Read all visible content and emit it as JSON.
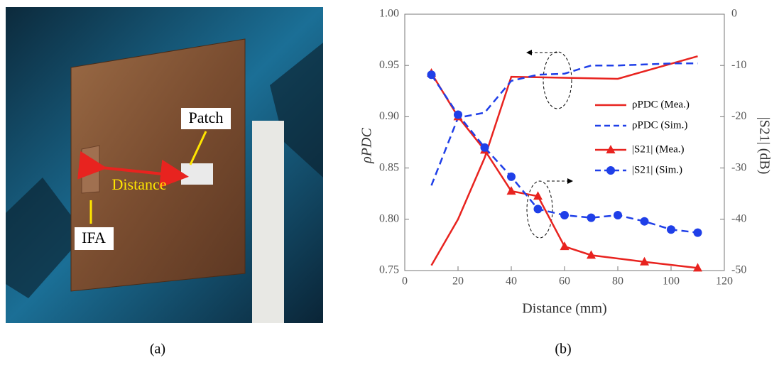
{
  "photo": {
    "labels": [
      "Patch",
      "Distance",
      "IFA"
    ]
  },
  "captions": [
    "(a)",
    "(b)"
  ],
  "chart_data": {
    "type": "line",
    "xlabel": "Distance (mm)",
    "ylabel": "ρPDC",
    "y2label": "|S21| (dB)",
    "xlim": [
      0,
      120
    ],
    "xticks": [
      0,
      20,
      40,
      60,
      80,
      100,
      120
    ],
    "ylim": [
      0.75,
      1.0
    ],
    "yticks": [
      0.75,
      {
        "value": 0.8,
        "label": "0.80"
      },
      0.85,
      {
        "value": 0.9,
        "label": "0.90"
      },
      0.95,
      {
        "value": 1.0,
        "label": "1.00"
      }
    ],
    "y2lim": [
      -50,
      0
    ],
    "y2ticks": [
      -50,
      -40,
      -30,
      -20,
      -10,
      0
    ],
    "legend": "center right",
    "series": [
      {
        "name": "ρPDC (Mea.)",
        "color": "#e8231f",
        "style": "solid",
        "marker": "none",
        "axis": "y",
        "x": [
          10,
          20,
          30,
          40,
          80,
          110
        ],
        "values": [
          0.755,
          0.8,
          0.86,
          0.939,
          0.937,
          0.959
        ]
      },
      {
        "name": "ρPDC (Sim.)",
        "color": "#1f3fe8",
        "style": "dashed",
        "marker": "none",
        "axis": "y",
        "x": [
          10,
          20,
          30,
          40,
          50,
          60,
          70,
          80,
          90,
          100,
          110
        ],
        "values": [
          0.833,
          0.899,
          0.904,
          0.935,
          0.941,
          0.942,
          0.95,
          0.95,
          0.951,
          0.952,
          0.952
        ]
      },
      {
        "name": "|S21| (Mea.)",
        "color": "#e8231f",
        "style": "solid",
        "marker": "triangle",
        "axis": "y2",
        "x": [
          10,
          20,
          30,
          40,
          50,
          60,
          70,
          90,
          110
        ],
        "values": [
          -11.5,
          -20,
          -26.5,
          -34.5,
          -35.5,
          -45.3,
          -47,
          -48.3,
          -49.5
        ]
      },
      {
        "name": "|S21| (Sim.)",
        "color": "#1f3fe8",
        "style": "dashed",
        "marker": "circle",
        "axis": "y2",
        "x": [
          10,
          20,
          30,
          40,
          50,
          60,
          70,
          80,
          90,
          100,
          110
        ],
        "values": [
          -11.8,
          -19.6,
          -26,
          -31.7,
          -38,
          -39.2,
          -39.7,
          -39.2,
          -40.4,
          -42,
          -42.6
        ]
      }
    ]
  }
}
